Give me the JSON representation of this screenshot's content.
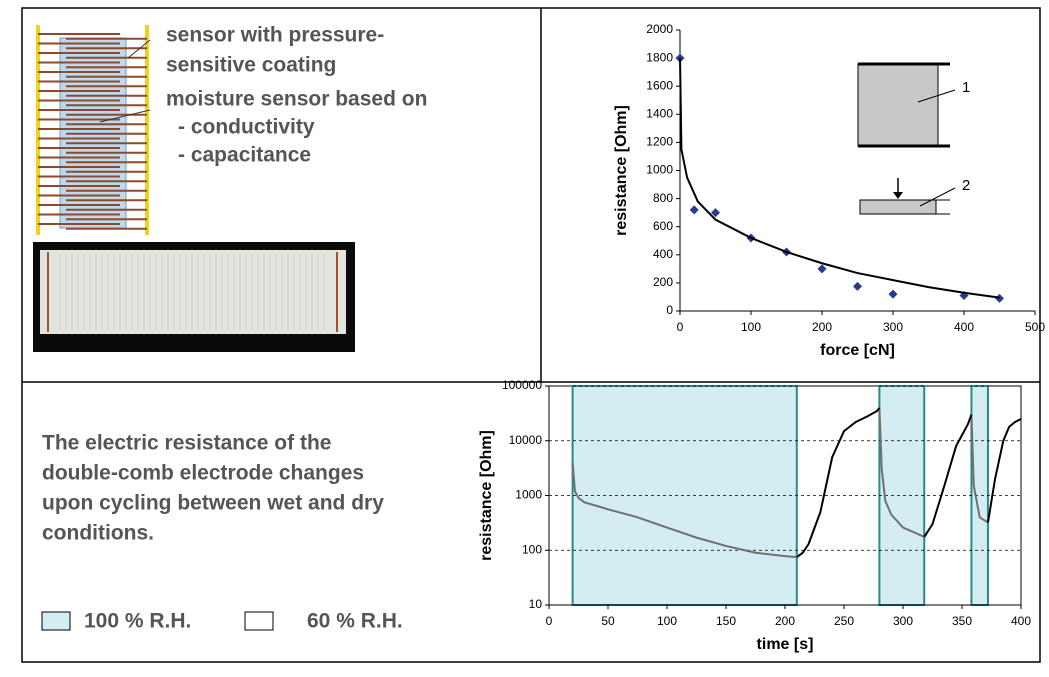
{
  "document": {
    "sensor_labels": [
      "sensor with pressure-",
      "sensitive coating",
      "moisture sensor based on",
      "- conductivity",
      "- capacitance"
    ],
    "description": [
      "The electric resistance of the",
      "double-comb electrode changes",
      "upon cycling between wet and dry",
      "conditions."
    ]
  },
  "chart_data": [
    {
      "type": "scatter",
      "xlabel": "force [cN]",
      "ylabel": "resistance [Ohm]",
      "xlim": [
        0,
        500
      ],
      "xticks": [
        0,
        100,
        200,
        300,
        400,
        500
      ],
      "ylim": [
        0,
        2000
      ],
      "yticks": [
        0,
        200,
        400,
        600,
        800,
        1000,
        1200,
        1400,
        1600,
        1800,
        2000
      ],
      "annotations": [
        "1",
        "2"
      ],
      "series": [
        {
          "type": "scatter",
          "color": "#2b3990",
          "x": [
            0,
            20,
            50,
            100,
            150,
            200,
            250,
            300,
            400,
            450
          ],
          "values": [
            1800,
            720,
            700,
            520,
            420,
            300,
            175,
            120,
            110,
            90
          ]
        },
        {
          "type": "line",
          "color": "#000000",
          "x": [
            0,
            2,
            10,
            25,
            50,
            100,
            150,
            200,
            250,
            300,
            350,
            400,
            450
          ],
          "values": [
            1800,
            1150,
            950,
            780,
            650,
            520,
            420,
            340,
            270,
            220,
            170,
            130,
            95
          ]
        }
      ]
    },
    {
      "type": "line",
      "yscale": "log",
      "grid": true,
      "frame": true,
      "xlabel": "time [s]",
      "ylabel": "resistance [Ohm]",
      "xlim": [
        0,
        400
      ],
      "xticks": [
        0,
        50,
        100,
        150,
        200,
        250,
        300,
        350,
        400
      ],
      "ylim": [
        10,
        100000
      ],
      "yticks": [
        10,
        100,
        1000,
        10000,
        100000
      ],
      "regions": [
        {
          "start": 20,
          "end": 210,
          "color": "#d3edf3"
        },
        {
          "start": 280,
          "end": 318,
          "color": "#d3edf3"
        },
        {
          "start": 358,
          "end": 372,
          "color": "#d3edf3"
        }
      ],
      "legend": [
        {
          "label": "100 % R.H.",
          "color": "#d3edf3"
        },
        {
          "label": "60 % R.H.",
          "color": "#ffffff"
        }
      ],
      "series": [
        {
          "type": "line",
          "color": "#707070",
          "x": [
            20,
            22,
            25,
            30,
            40,
            50,
            75,
            100,
            125,
            150,
            175,
            200,
            210,
            null,
            280,
            282,
            285,
            290,
            300,
            310,
            318,
            null,
            358,
            360,
            365,
            372
          ],
          "values": [
            4000,
            1200,
            900,
            750,
            650,
            560,
            400,
            260,
            170,
            120,
            90,
            78,
            75,
            null,
            40000,
            3000,
            800,
            450,
            260,
            210,
            175,
            null,
            30000,
            1500,
            400,
            320
          ]
        },
        {
          "type": "line",
          "color": "#000000",
          "x": [
            210,
            215,
            220,
            230,
            240,
            250,
            260,
            270,
            278,
            280,
            null,
            318,
            325,
            335,
            345,
            355,
            358,
            null,
            372,
            378,
            385,
            390,
            395,
            400
          ],
          "values": [
            75,
            90,
            130,
            500,
            5000,
            15000,
            22000,
            28000,
            35000,
            40000,
            null,
            175,
            300,
            1500,
            8000,
            20000,
            30000,
            null,
            320,
            2000,
            10000,
            18000,
            22000,
            25000
          ]
        }
      ]
    }
  ]
}
